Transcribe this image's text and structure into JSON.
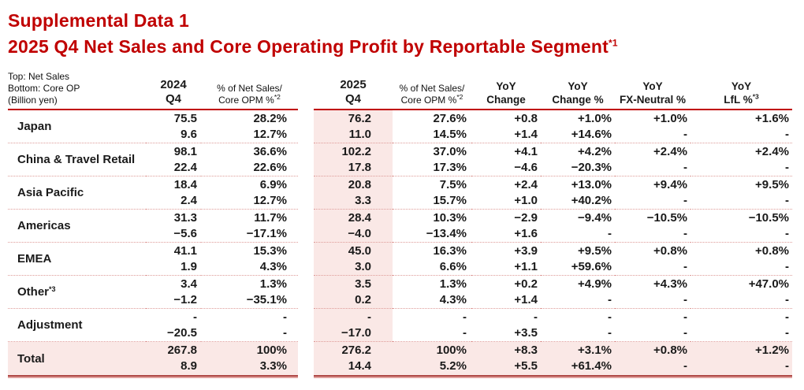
{
  "title": {
    "line1": "Supplemental Data 1",
    "line2": "2025 Q4 Net Sales and Core Operating Profit by Reportable Segment",
    "line2_sup": "*1"
  },
  "colors": {
    "accent_red": "#c00000",
    "highlight_pink": "#fae8e6",
    "dotted_separator": "#de9b98"
  },
  "table": {
    "unit_note": {
      "line1": "Top: Net Sales",
      "line2": "Bottom: Core OP",
      "line3": "(Billion yen)"
    },
    "columns": [
      {
        "line1": "2024",
        "line2": "Q4",
        "sup": ""
      },
      {
        "line1": "% of Net Sales/",
        "line2": "Core OPM %",
        "sup": "*2"
      },
      {
        "line1": "2025",
        "line2": "Q4",
        "sup": ""
      },
      {
        "line1": "% of Net Sales/",
        "line2": "Core OPM %",
        "sup": "*2"
      },
      {
        "line1": "YoY",
        "line2": "Change",
        "sup": ""
      },
      {
        "line1": "YoY",
        "line2": "Change %",
        "sup": ""
      },
      {
        "line1": "YoY",
        "line2": "FX-Neutral %",
        "sup": ""
      },
      {
        "line1": "YoY",
        "line2": "LfL %",
        "sup": "*3"
      }
    ],
    "rows": [
      {
        "label": "Japan",
        "label_sup": "",
        "net_sales": [
          "75.5",
          "28.2%",
          "76.2",
          "27.6%",
          "+0.8",
          "+1.0%",
          "+1.0%",
          "+1.6%"
        ],
        "core_op": [
          "9.6",
          "12.7%",
          "11.0",
          "14.5%",
          "+1.4",
          "+14.6%",
          "-",
          "-"
        ]
      },
      {
        "label": "China & Travel Retail",
        "label_sup": "",
        "net_sales": [
          "98.1",
          "36.6%",
          "102.2",
          "37.0%",
          "+4.1",
          "+4.2%",
          "+2.4%",
          "+2.4%"
        ],
        "core_op": [
          "22.4",
          "22.6%",
          "17.8",
          "17.3%",
          "−4.6",
          "−20.3%",
          "-",
          "-"
        ]
      },
      {
        "label": "Asia Pacific",
        "label_sup": "",
        "net_sales": [
          "18.4",
          "6.9%",
          "20.8",
          "7.5%",
          "+2.4",
          "+13.0%",
          "+9.4%",
          "+9.5%"
        ],
        "core_op": [
          "2.4",
          "12.7%",
          "3.3",
          "15.7%",
          "+1.0",
          "+40.2%",
          "-",
          "-"
        ]
      },
      {
        "label": "Americas",
        "label_sup": "",
        "net_sales": [
          "31.3",
          "11.7%",
          "28.4",
          "10.3%",
          "−2.9",
          "−9.4%",
          "−10.5%",
          "−10.5%"
        ],
        "core_op": [
          "−5.6",
          "−17.1%",
          "−4.0",
          "−13.4%",
          "+1.6",
          "-",
          "-",
          "-"
        ]
      },
      {
        "label": "EMEA",
        "label_sup": "",
        "net_sales": [
          "41.1",
          "15.3%",
          "45.0",
          "16.3%",
          "+3.9",
          "+9.5%",
          "+0.8%",
          "+0.8%"
        ],
        "core_op": [
          "1.9",
          "4.3%",
          "3.0",
          "6.6%",
          "+1.1",
          "+59.6%",
          "-",
          "-"
        ]
      },
      {
        "label": "Other",
        "label_sup": "*3",
        "net_sales": [
          "3.4",
          "1.3%",
          "3.5",
          "1.3%",
          "+0.2",
          "+4.9%",
          "+4.3%",
          "+47.0%"
        ],
        "core_op": [
          "−1.2",
          "−35.1%",
          "0.2",
          "4.3%",
          "+1.4",
          "-",
          "-",
          "-"
        ]
      },
      {
        "label": "Adjustment",
        "label_sup": "",
        "net_sales": [
          "-",
          "-",
          "-",
          "-",
          "-",
          "-",
          "-",
          "-"
        ],
        "core_op": [
          "−20.5",
          "-",
          "−17.0",
          "-",
          "+3.5",
          "-",
          "-",
          "-"
        ]
      }
    ],
    "total": {
      "label": "Total",
      "label_sup": "",
      "net_sales": [
        "267.8",
        "100%",
        "276.2",
        "100%",
        "+8.3",
        "+3.1%",
        "+0.8%",
        "+1.2%"
      ],
      "core_op": [
        "8.9",
        "3.3%",
        "14.4",
        "5.2%",
        "+5.5",
        "+61.4%",
        "-",
        "-"
      ]
    }
  }
}
